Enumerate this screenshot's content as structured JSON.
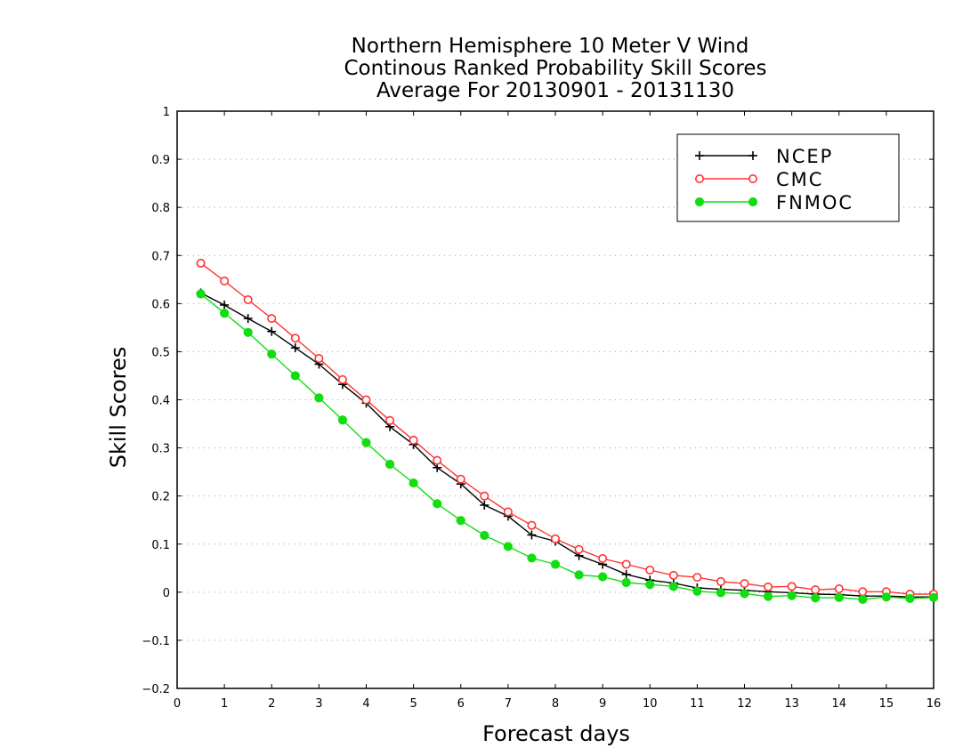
{
  "chart_data": {
    "type": "line",
    "title": [
      "Northern Hemisphere 10 Meter V Wind",
      "Continous Ranked Probability Skill Scores",
      "Average For 20130901 - 20131130"
    ],
    "xlabel": "Forecast days",
    "ylabel": "Skill Scores",
    "xlim": [
      0,
      16
    ],
    "ylim": [
      -0.2,
      1
    ],
    "x_ticks": [
      0,
      1,
      2,
      3,
      4,
      5,
      6,
      7,
      8,
      9,
      10,
      11,
      12,
      13,
      14,
      15,
      16
    ],
    "x_tick_labels": [
      "0",
      "1",
      "2",
      "3",
      "4",
      "5",
      "6",
      "7",
      "8",
      "9",
      "10",
      "11",
      "12",
      "13",
      "14",
      "15",
      "16"
    ],
    "y_ticks": [
      -0.2,
      -0.1,
      0,
      0.1,
      0.2,
      0.3,
      0.4,
      0.5,
      0.6,
      0.7,
      0.8,
      0.9,
      1
    ],
    "y_tick_labels": [
      "−0.2",
      "−0.1",
      "0",
      "0.1",
      "0.2",
      "0.3",
      "0.4",
      "0.5",
      "0.6",
      "0.7",
      "0.8",
      "0.9",
      "1"
    ],
    "grid": "horizontal dotted",
    "legend_position": "top-right",
    "x": [
      0.5,
      1,
      1.5,
      2,
      2.5,
      3,
      3.5,
      4,
      4.5,
      5,
      5.5,
      6,
      6.5,
      7,
      7.5,
      8,
      8.5,
      9,
      9.5,
      10,
      10.5,
      11,
      11.5,
      12,
      12.5,
      13,
      13.5,
      14,
      14.5,
      15,
      15.5,
      16
    ],
    "series": [
      {
        "name": "NCEP",
        "color": "#000000",
        "marker": "plus",
        "values": [
          0.622,
          0.597,
          0.569,
          0.542,
          0.508,
          0.474,
          0.432,
          0.393,
          0.344,
          0.307,
          0.259,
          0.225,
          0.181,
          0.158,
          0.119,
          0.106,
          0.076,
          0.058,
          0.037,
          0.025,
          0.019,
          0.009,
          0.006,
          0.004,
          0.001,
          -0.001,
          -0.004,
          -0.005,
          -0.008,
          -0.008,
          -0.01,
          -0.01
        ]
      },
      {
        "name": "CMC",
        "color": "#ff3333",
        "marker": "open-circle",
        "values": [
          0.684,
          0.647,
          0.608,
          0.569,
          0.528,
          0.486,
          0.442,
          0.4,
          0.357,
          0.316,
          0.274,
          0.235,
          0.2,
          0.167,
          0.139,
          0.111,
          0.089,
          0.07,
          0.058,
          0.046,
          0.035,
          0.031,
          0.022,
          0.018,
          0.011,
          0.012,
          0.005,
          0.007,
          0.001,
          0.001,
          -0.004,
          -0.004
        ]
      },
      {
        "name": "FNMOC",
        "color": "#11dd11",
        "marker": "filled-circle",
        "values": [
          0.62,
          0.58,
          0.54,
          0.495,
          0.45,
          0.404,
          0.358,
          0.311,
          0.266,
          0.227,
          0.184,
          0.149,
          0.118,
          0.095,
          0.071,
          0.058,
          0.036,
          0.032,
          0.02,
          0.016,
          0.012,
          0.002,
          -0.001,
          -0.003,
          -0.009,
          -0.007,
          -0.012,
          -0.011,
          -0.015,
          -0.01,
          -0.013,
          -0.011
        ]
      }
    ]
  }
}
